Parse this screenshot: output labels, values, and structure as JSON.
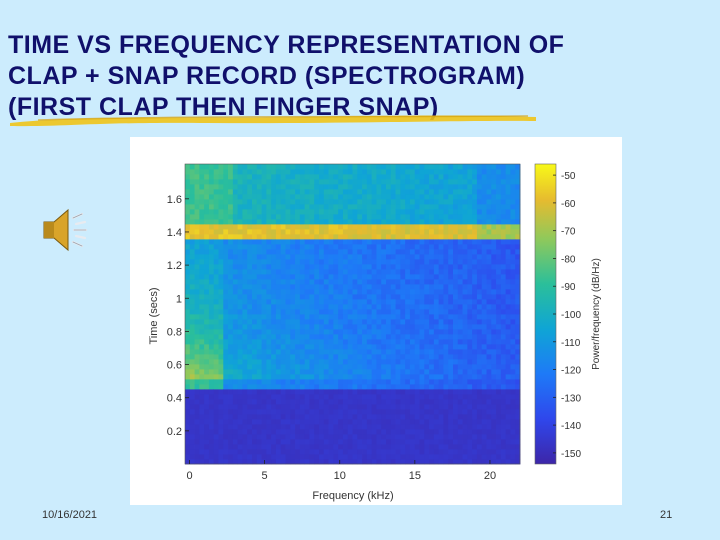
{
  "slide": {
    "title_lines": [
      "TIME VS FREQUENCY REPRESENTATION OF",
      "CLAP + SNAP RECORD (SPECTROGRAM)",
      "(FIRST CLAP THEN FINGER SNAP)"
    ],
    "date": "10/16/2021",
    "page_number": "21",
    "audio_icon": "speaker-icon",
    "colors": {
      "background": "#ccecfd",
      "title": "#10106b",
      "highlight": "#f0c419"
    }
  },
  "chart_data": {
    "type": "heatmap",
    "xlabel": "Frequency (kHz)",
    "ylabel": "Time (secs)",
    "colorbar_label": "Power/frequency (dB/Hz)",
    "x_ticks": [
      0,
      5,
      10,
      15,
      20
    ],
    "x_tick_labels": [
      "0",
      "5",
      "10",
      "15",
      "20"
    ],
    "y_ticks": [
      0.2,
      0.4,
      0.6,
      0.8,
      1,
      1.2,
      1.4,
      1.6
    ],
    "y_tick_labels": [
      "0.2",
      "0.4",
      "0.6",
      "0.8",
      "1",
      "1.2",
      "1.4",
      "1.6"
    ],
    "colorbar_ticks": [
      -50,
      -60,
      -70,
      -80,
      -90,
      -100,
      -110,
      -120,
      -130,
      -140,
      -150
    ],
    "colorbar_tick_labels": [
      "-50",
      "-60",
      "-70",
      "-80",
      "-90",
      "-100",
      "-110",
      "-120",
      "-130",
      "-140",
      "-150"
    ],
    "xlim": [
      -0.3,
      22
    ],
    "ylim": [
      0,
      1.81
    ],
    "clim": [
      -154,
      -46
    ],
    "events": [
      {
        "name": "clap",
        "time": 0.5
      },
      {
        "name": "finger snap",
        "time": 1.4
      }
    ],
    "silence_below_time": 0.45,
    "silence_level": -148
  }
}
